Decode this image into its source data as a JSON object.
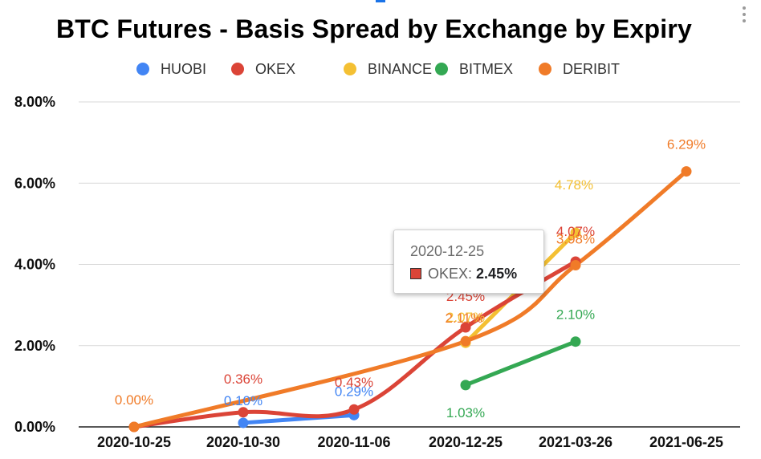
{
  "chart_data": {
    "type": "line",
    "title": "BTC Futures - Basis Spread by Exchange by Expiry",
    "categories": [
      "2020-10-25",
      "2020-10-30",
      "2020-11-06",
      "2020-12-25",
      "2021-03-26",
      "2021-06-25"
    ],
    "y_ticks": [
      "0.00%",
      "2.00%",
      "4.00%",
      "6.00%",
      "8.00%"
    ],
    "ylim": [
      0,
      8
    ],
    "grid": true,
    "legend_position": "top",
    "series": [
      {
        "name": "HUOBI",
        "color": "#4285f4",
        "values": [
          null,
          0.1,
          0.29,
          null,
          null,
          null
        ],
        "labels": [
          null,
          "0.10%",
          "0.29%",
          null,
          null,
          null
        ]
      },
      {
        "name": "BINANCE",
        "color": "#f4c033",
        "values": [
          null,
          null,
          null,
          2.07,
          4.78,
          null
        ],
        "labels": [
          null,
          null,
          null,
          "2.07%",
          "4.78%",
          null
        ]
      },
      {
        "name": "BITMEX",
        "color": "#34a853",
        "values": [
          null,
          null,
          null,
          1.03,
          2.1,
          null
        ],
        "labels": [
          null,
          null,
          null,
          "1.03%",
          "2.10%",
          null
        ]
      },
      {
        "name": "OKEX",
        "color": "#db4437",
        "values": [
          0.0,
          0.36,
          0.43,
          2.45,
          4.07,
          null
        ],
        "labels": [
          null,
          "0.36%",
          "0.43%",
          "2.45%",
          "4.07%",
          null
        ]
      },
      {
        "name": "DERIBIT",
        "color": "#f07b28",
        "values": [
          0.0,
          null,
          null,
          2.11,
          3.98,
          6.29
        ],
        "labels": [
          "0.00%",
          null,
          null,
          "2.11%",
          "3.98%",
          "6.29%"
        ]
      }
    ],
    "legend_order": [
      "HUOBI",
      "OKEX",
      "BINANCE",
      "BITMEX",
      "DERIBIT"
    ],
    "tooltip": {
      "date": "2020-12-25",
      "series": "OKEX",
      "value": "2.45%"
    }
  }
}
